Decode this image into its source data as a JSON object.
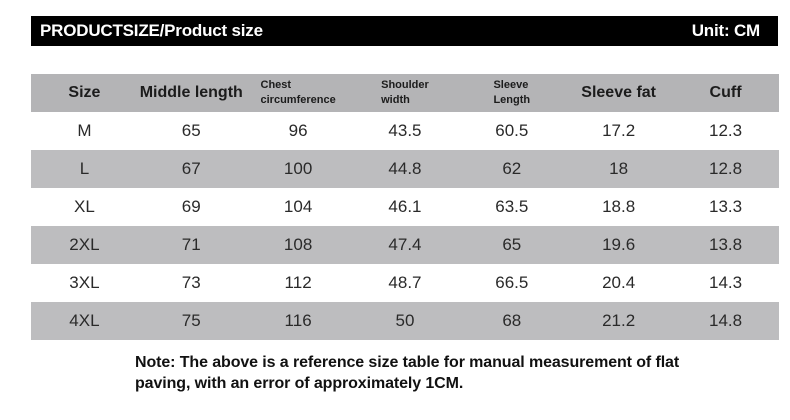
{
  "header_bar": {
    "title": "PRODUCTSIZE/Product size",
    "unit_label": "Unit: CM"
  },
  "size_table": {
    "columns": [
      {
        "label": "Size",
        "style": "large"
      },
      {
        "label": "Middle length",
        "style": "large"
      },
      {
        "label": "Chest\ncircumference",
        "style": "small"
      },
      {
        "label": "Shoulder\nwidth",
        "style": "small"
      },
      {
        "label": "Sleeve\nLength",
        "style": "small"
      },
      {
        "label": "Sleeve fat",
        "style": "large"
      },
      {
        "label": "Cuff",
        "style": "large"
      }
    ],
    "rows": [
      [
        "M",
        "65",
        "96",
        "43.5",
        "60.5",
        "17.2",
        "12.3"
      ],
      [
        "L",
        "67",
        "100",
        "44.8",
        "62",
        "18",
        "12.8"
      ],
      [
        "XL",
        "69",
        "104",
        "46.1",
        "63.5",
        "18.8",
        "13.3"
      ],
      [
        "2XL",
        "71",
        "108",
        "47.4",
        "65",
        "19.6",
        "13.8"
      ],
      [
        "3XL",
        "73",
        "112",
        "48.7",
        "66.5",
        "20.4",
        "14.3"
      ],
      [
        "4XL",
        "75",
        "116",
        "50",
        "68",
        "21.2",
        "14.8"
      ]
    ]
  },
  "note": {
    "text": "Note: The above is a reference size table for manual measurement of flat\npaving, with an error of approximately 1CM."
  },
  "colors": {
    "bar_background": "#000000",
    "bar_text": "#ffffff",
    "header_row_background": "#b4b4b6",
    "alt_row_background": "#bdbdbf",
    "body_text": "#2a2a2a"
  }
}
